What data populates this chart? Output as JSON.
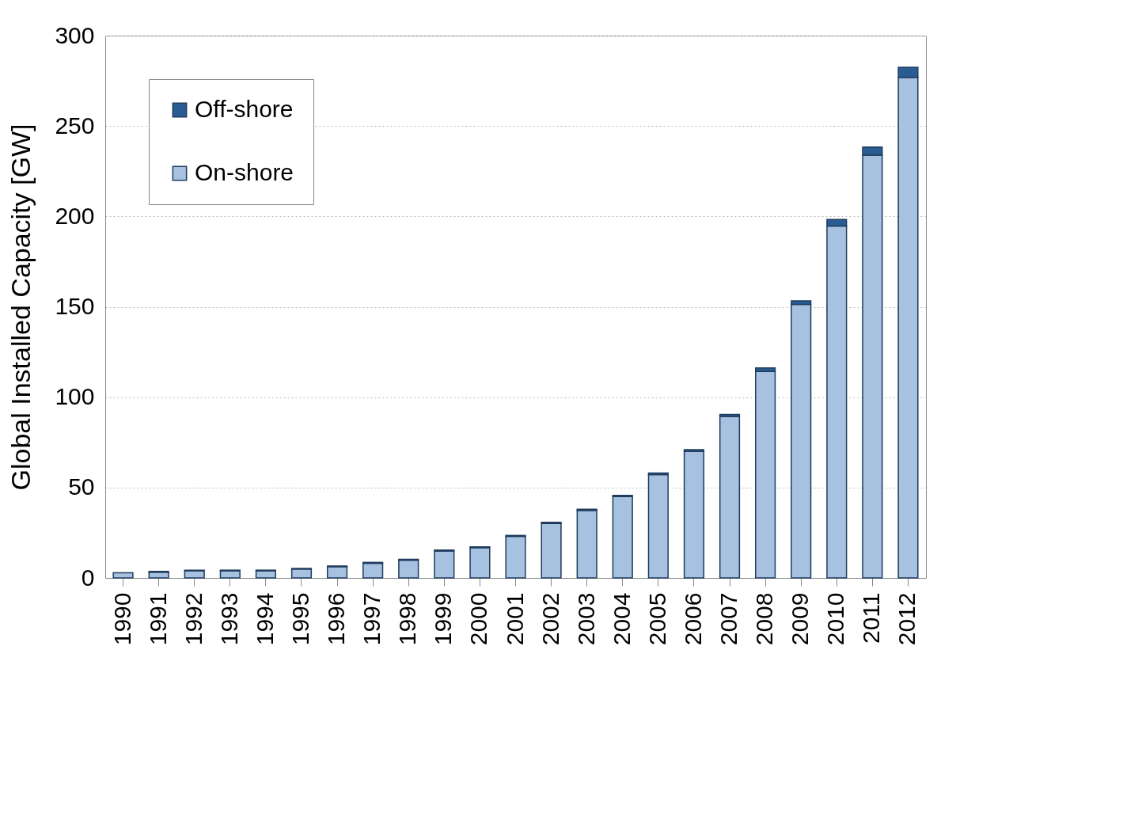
{
  "chart_data": {
    "type": "bar",
    "stacked": true,
    "ylabel": "Global Installed Capacity [GW]",
    "categories": [
      "1990",
      "1991",
      "1992",
      "1993",
      "1994",
      "1995",
      "1996",
      "1997",
      "1998",
      "1999",
      "2000",
      "2001",
      "2002",
      "2003",
      "2004",
      "2005",
      "2006",
      "2007",
      "2008",
      "2009",
      "2010",
      "2011",
      "2012"
    ],
    "series": [
      {
        "name": "On-shore",
        "color": "#a7c1e0",
        "values": [
          2.9,
          3.2,
          3.9,
          3.9,
          3.9,
          4.9,
          6.2,
          8.1,
          9.8,
          14.9,
          16.7,
          23.0,
          30.1,
          37.3,
          45.0,
          57.2,
          70.0,
          89.3,
          114.2,
          151.3,
          194.7,
          233.9,
          276.9
        ]
      },
      {
        "name": "Off-shore",
        "color": "#285c92",
        "values": [
          null,
          0.4,
          0.4,
          0.4,
          0.4,
          0.4,
          0.4,
          0.5,
          0.5,
          0.5,
          0.5,
          0.5,
          0.7,
          0.7,
          0.7,
          0.8,
          0.9,
          1.1,
          2.0,
          2.0,
          3.6,
          4.5,
          5.6
        ]
      }
    ],
    "ylim": [
      0,
      300
    ],
    "yticks": [
      0,
      50,
      100,
      150,
      200,
      250,
      300
    ],
    "grid": "y",
    "legend": "top left"
  }
}
